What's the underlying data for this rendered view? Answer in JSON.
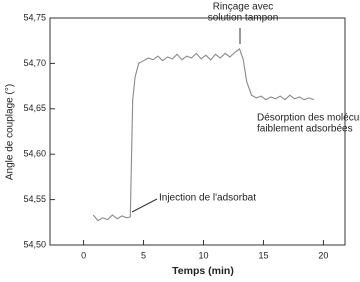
{
  "chart_data": {
    "type": "line",
    "x_label": "Temps (min)",
    "y_label": "Angle de couplage (°)",
    "x": [
      0.8,
      1.2,
      1.6,
      2.0,
      2.4,
      2.8,
      3.2,
      3.6,
      3.9,
      4.1,
      4.3,
      4.6,
      5.0,
      5.4,
      5.8,
      6.2,
      6.6,
      7.0,
      7.4,
      7.8,
      8.2,
      8.6,
      9.0,
      9.4,
      9.8,
      10.2,
      10.6,
      11.0,
      11.4,
      11.8,
      12.2,
      12.6,
      13.0,
      13.3,
      13.6,
      14.0,
      14.4,
      14.8,
      15.2,
      15.6,
      16.0,
      16.4,
      16.8,
      17.2,
      17.6,
      18.0,
      18.4,
      18.8,
      19.2
    ],
    "series": [
      {
        "color": "#8a8a8a",
        "values": [
          54.533,
          54.527,
          54.53,
          54.528,
          54.533,
          54.529,
          54.532,
          54.53,
          54.531,
          54.66,
          54.685,
          54.7,
          54.703,
          54.706,
          54.704,
          54.708,
          54.703,
          54.707,
          54.705,
          54.71,
          54.704,
          54.708,
          54.706,
          54.711,
          54.705,
          54.709,
          54.704,
          54.71,
          54.706,
          54.711,
          54.707,
          54.712,
          54.716,
          54.705,
          54.68,
          54.665,
          54.662,
          54.664,
          54.66,
          54.663,
          54.661,
          54.664,
          54.66,
          54.665,
          54.661,
          54.663,
          54.66,
          54.662,
          54.66
        ]
      }
    ],
    "xlim": [
      -2.8,
      21.8
    ],
    "xticks": [
      0,
      5,
      10,
      15,
      20
    ],
    "ylim": [
      54.5,
      54.75
    ],
    "yticks": [
      {
        "value": 54.5,
        "label": "54,50"
      },
      {
        "value": 54.55,
        "label": "54,55"
      },
      {
        "value": 54.6,
        "label": "54,60"
      },
      {
        "value": 54.65,
        "label": "54,65"
      },
      {
        "value": 54.7,
        "label": "54,70"
      },
      {
        "value": 54.75,
        "label": "54,75"
      }
    ],
    "annotations": [
      {
        "lines": [
          "Rinçage avec",
          "solution tampon"
        ]
      },
      {
        "lines": [
          "Désorption des molécules",
          "faiblement adsorbées"
        ]
      },
      {
        "lines": [
          "Injection de l'adsorbat"
        ]
      }
    ]
  }
}
